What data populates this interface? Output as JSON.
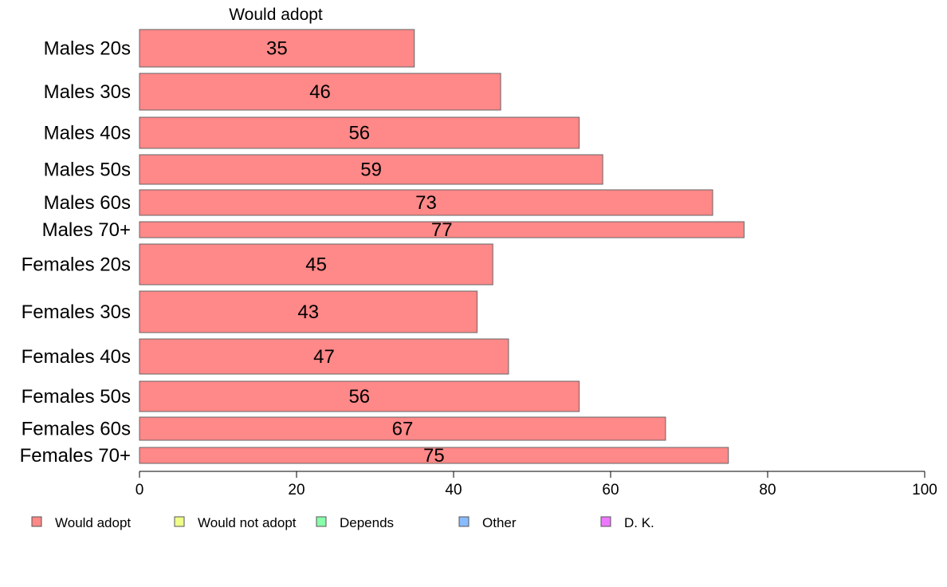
{
  "chart_data": {
    "type": "bar",
    "orientation": "horizontal",
    "series_title": "Would adopt",
    "categories": [
      "Males 20s",
      "Males 30s",
      "Males 40s",
      "Males 50s",
      "Males 60s",
      "Males 70+",
      "Females 20s",
      "Females 30s",
      "Females 40s",
      "Females 50s",
      "Females 60s",
      "Females 70+"
    ],
    "series": [
      {
        "name": "Would adopt",
        "color": "#ff8888",
        "values": [
          35,
          46,
          56,
          59,
          73,
          77,
          45,
          43,
          47,
          56,
          67,
          75
        ]
      }
    ],
    "value_labels": [
      "35",
      "46",
      "56",
      "59",
      "73",
      "77",
      "45",
      "43",
      "47",
      "56",
      "67",
      "75"
    ],
    "xlim": [
      0,
      100
    ],
    "xticks": [
      0,
      20,
      40,
      60,
      80,
      100
    ],
    "xtick_labels": [
      "0",
      "20",
      "40",
      "60",
      "80",
      "100"
    ],
    "grid": false,
    "legend": {
      "position": "bottom",
      "items": [
        {
          "label": "Would adopt",
          "color": "#ff8888"
        },
        {
          "label": "Would not adopt",
          "color": "#eeff88"
        },
        {
          "label": "Depends",
          "color": "#88ffaa"
        },
        {
          "label": "Other",
          "color": "#88bbff"
        },
        {
          "label": "D. K.",
          "color": "#ee77ff"
        }
      ]
    }
  }
}
